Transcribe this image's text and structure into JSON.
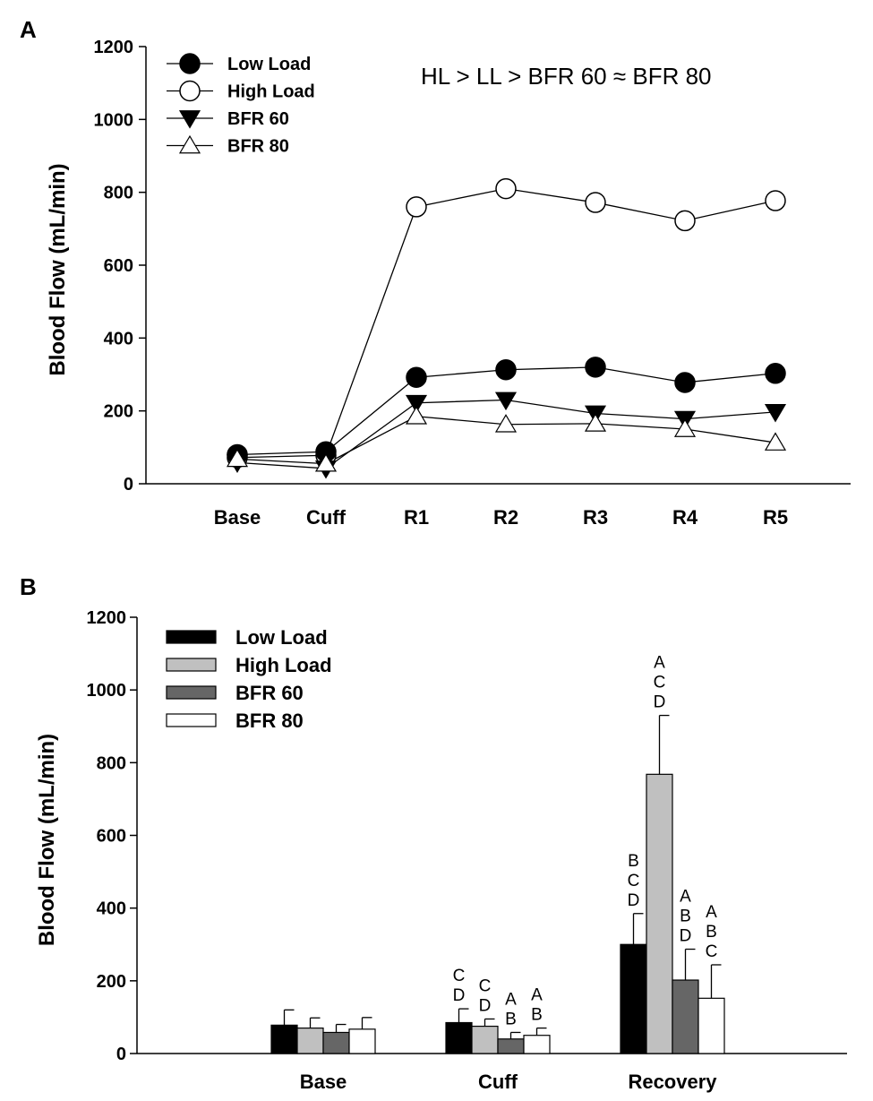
{
  "panel_a": {
    "label": "A",
    "annotation": "HL > LL > BFR 60 ≈ BFR 80"
  },
  "panel_b": {
    "label": "B"
  },
  "chart_data": [
    {
      "type": "line",
      "panel": "A",
      "ylabel": "Blood Flow (mL/min)",
      "xlabel": "",
      "ylim": [
        0,
        1200
      ],
      "yticks": [
        0,
        200,
        400,
        600,
        800,
        1000,
        1200
      ],
      "categories": [
        "Base",
        "Cuff",
        "R1",
        "R2",
        "R3",
        "R4",
        "R5"
      ],
      "legend_position": "top-left",
      "series": [
        {
          "name": "Low Load",
          "marker": "filled-circle",
          "values": [
            80,
            88,
            292,
            313,
            320,
            278,
            303
          ]
        },
        {
          "name": "High Load",
          "marker": "open-circle",
          "values": [
            72,
            78,
            760,
            810,
            772,
            722,
            777
          ]
        },
        {
          "name": "BFR 60",
          "marker": "filled-triangle-down",
          "values": [
            58,
            42,
            222,
            230,
            193,
            178,
            197
          ]
        },
        {
          "name": "BFR 80",
          "marker": "open-triangle-up",
          "values": [
            68,
            55,
            185,
            163,
            165,
            150,
            113
          ]
        }
      ]
    },
    {
      "type": "bar",
      "panel": "B",
      "ylabel": "Blood Flow (mL/min)",
      "xlabel": "",
      "ylim": [
        0,
        1200
      ],
      "yticks": [
        0,
        200,
        400,
        600,
        800,
        1000,
        1200
      ],
      "categories": [
        "Base",
        "Cuff",
        "Recovery"
      ],
      "legend_position": "top-left",
      "series": [
        {
          "name": "Low Load",
          "color": "#000000",
          "values": [
            78,
            85,
            300
          ],
          "errors": [
            42,
            38,
            85
          ],
          "labels": [
            "",
            "C\nD",
            "B\nC\nD"
          ]
        },
        {
          "name": "High Load",
          "color": "#c0c0c0",
          "values": [
            70,
            75,
            768
          ],
          "errors": [
            28,
            20,
            162
          ],
          "labels": [
            "",
            "C\nD",
            "A\nC\nD"
          ]
        },
        {
          "name": "BFR 60",
          "color": "#666666",
          "values": [
            58,
            40,
            202
          ],
          "errors": [
            22,
            18,
            85
          ],
          "labels": [
            "",
            "A\nB",
            "A\nB\nD"
          ]
        },
        {
          "name": "BFR 80",
          "color": "#ffffff",
          "values": [
            67,
            50,
            152
          ],
          "errors": [
            32,
            20,
            92
          ],
          "labels": [
            "",
            "A\nB",
            "A\nB\nC"
          ]
        }
      ]
    }
  ]
}
